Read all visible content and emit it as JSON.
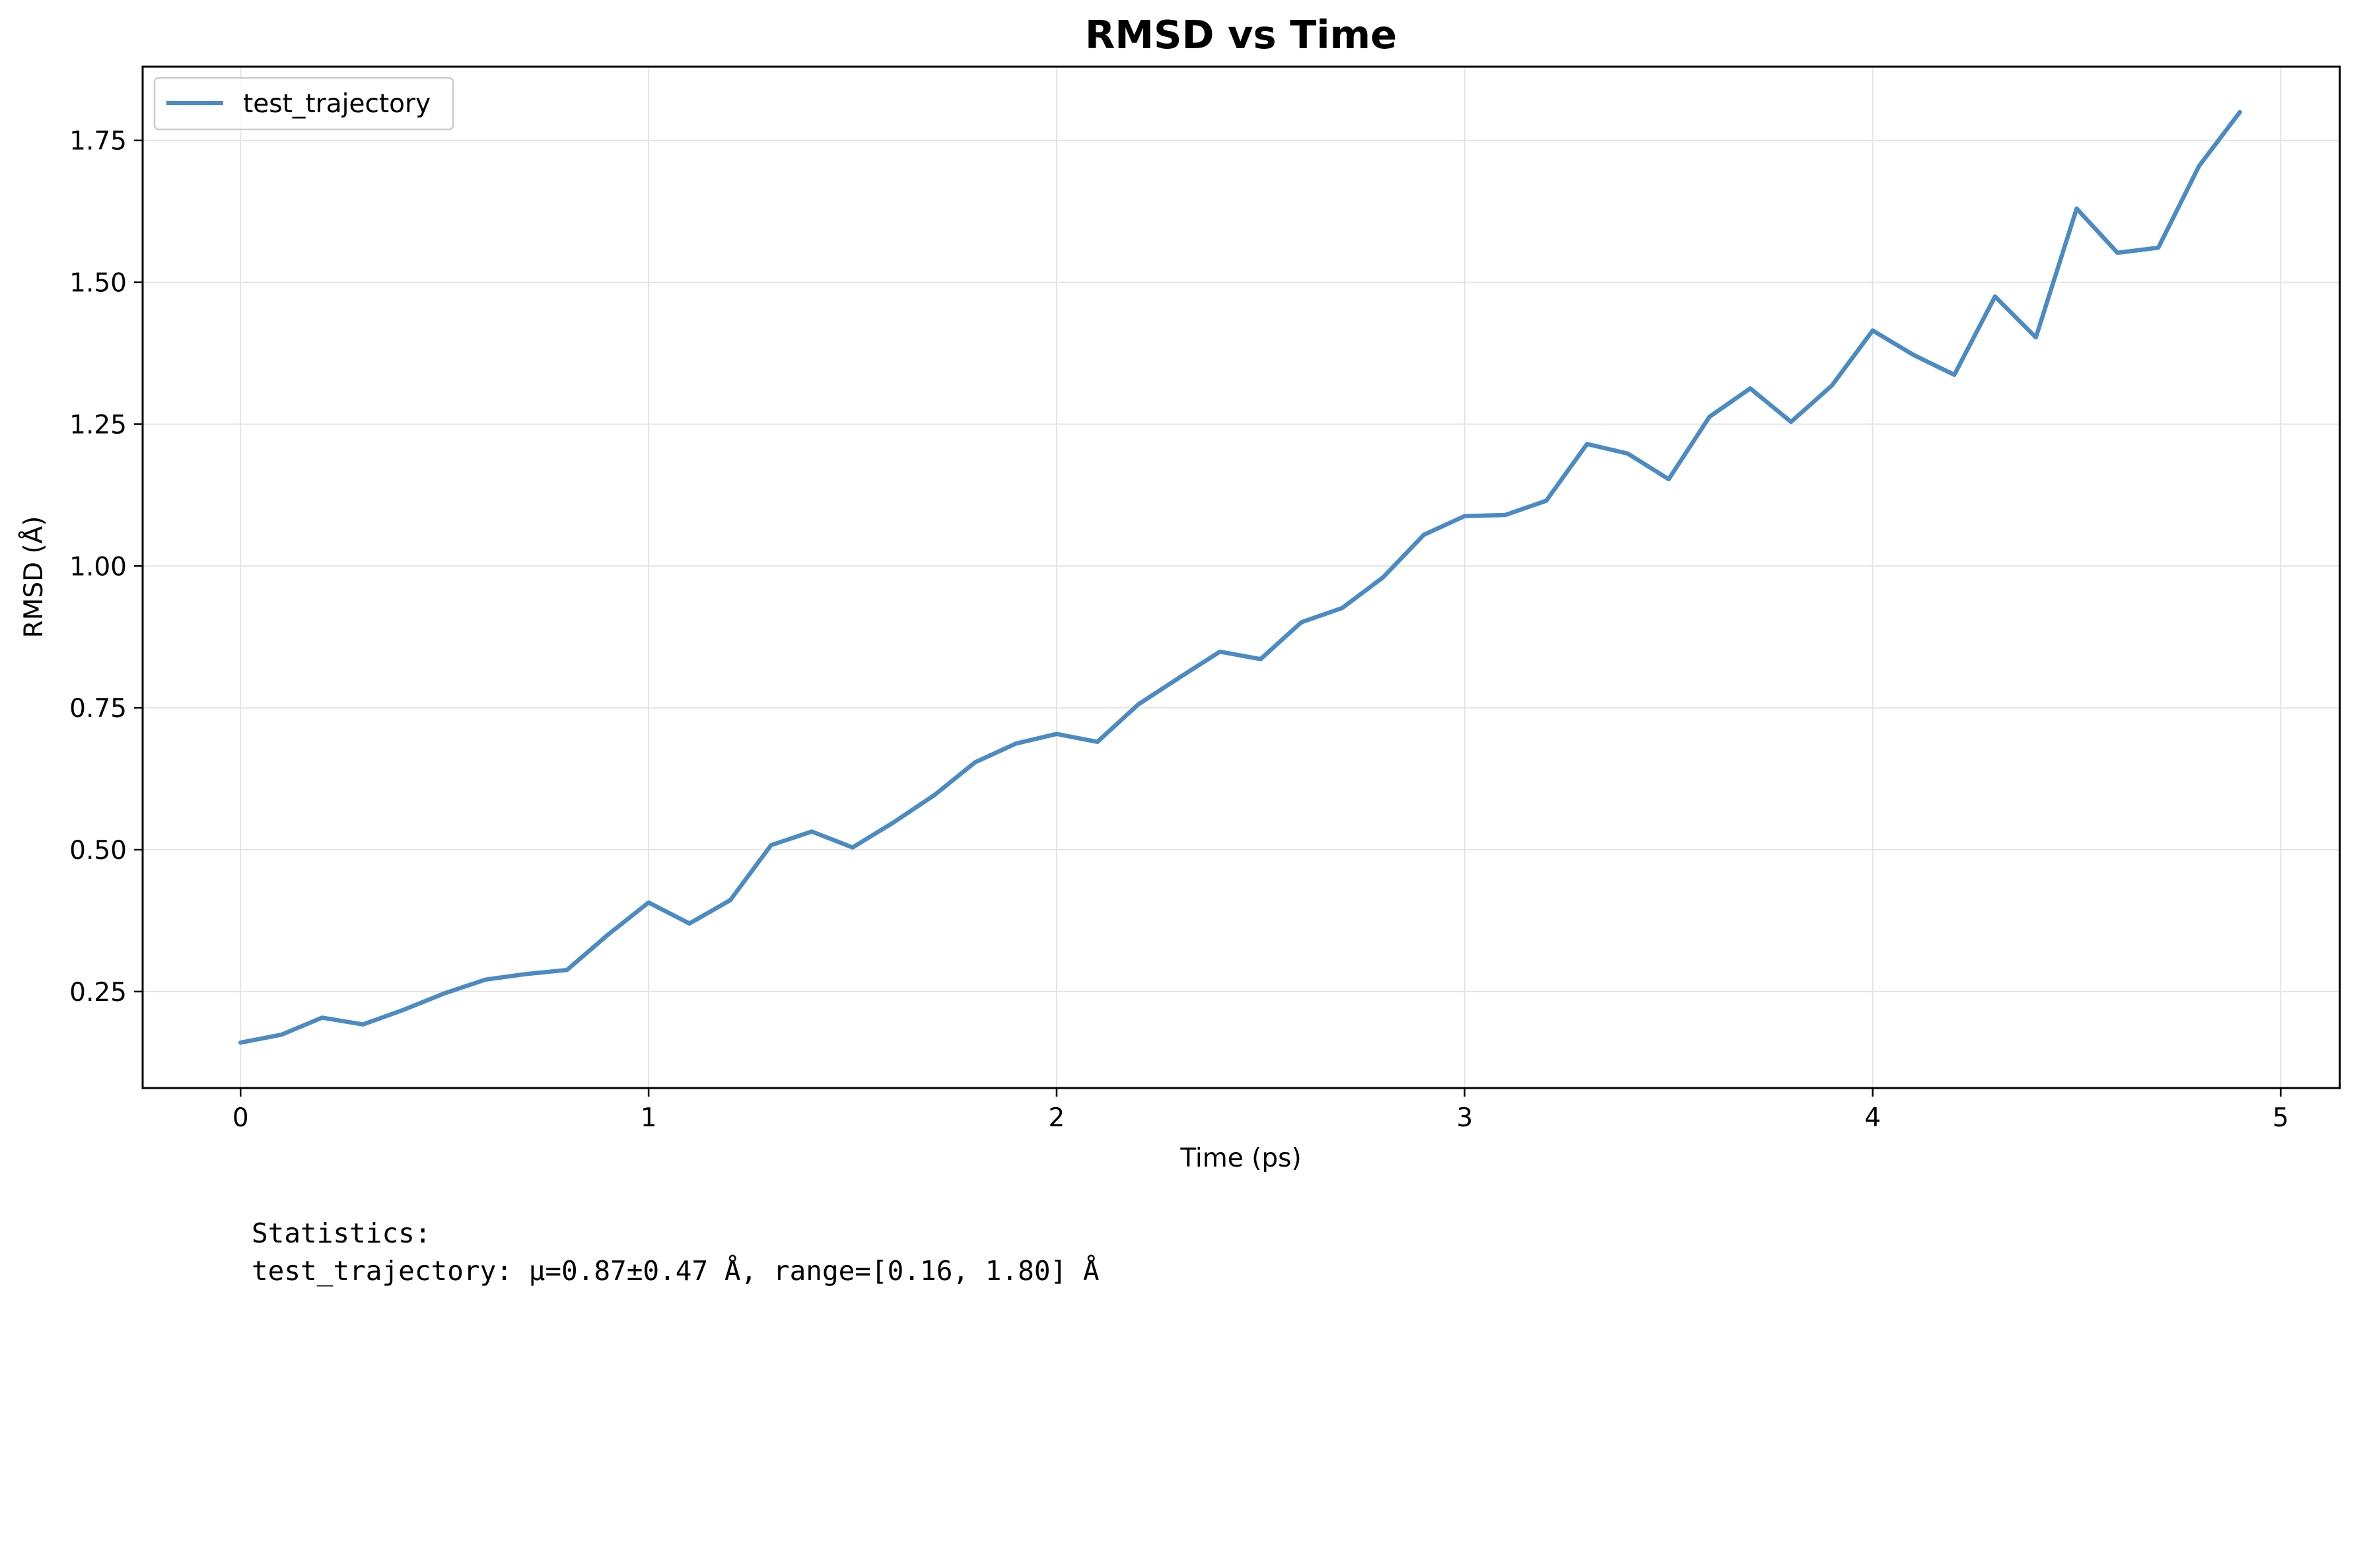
{
  "chart_data": {
    "type": "line",
    "title": "RMSD vs Time",
    "xlabel": "Time (ps)",
    "ylabel": "RMSD (Å)",
    "xlim": [
      -0.24,
      5.145
    ],
    "ylim": [
      0.08,
      1.88
    ],
    "xticks": [
      0,
      1,
      2,
      3,
      4,
      5
    ],
    "xtick_labels": [
      "0",
      "1",
      "2",
      "3",
      "4",
      "5"
    ],
    "yticks": [
      0.25,
      0.5,
      0.75,
      1.0,
      1.25,
      1.5,
      1.75
    ],
    "ytick_labels": [
      "0.25",
      "0.50",
      "0.75",
      "1.00",
      "1.25",
      "1.50",
      "1.75"
    ],
    "grid": true,
    "legend_position": "top-left",
    "x": [
      0,
      0.1,
      0.2,
      0.3,
      0.4,
      0.5,
      0.6,
      0.7,
      0.8,
      0.9,
      1.0,
      1.1,
      1.2,
      1.3,
      1.4,
      1.5,
      1.6,
      1.7,
      1.8,
      1.9,
      2.0,
      2.1,
      2.2,
      2.3,
      2.4,
      2.5,
      2.6,
      2.7,
      2.8,
      2.9,
      3.0,
      3.1,
      3.2,
      3.3,
      3.4,
      3.5,
      3.6,
      3.7,
      3.8,
      3.9,
      4.0,
      4.1,
      4.2,
      4.3,
      4.4,
      4.5,
      4.6,
      4.7,
      4.8,
      4.9
    ],
    "series": [
      {
        "name": "test_trajectory",
        "color": "#4a8bc4",
        "values": [
          0.16,
          0.174,
          0.204,
          0.192,
          0.218,
          0.247,
          0.271,
          0.281,
          0.288,
          0.35,
          0.407,
          0.37,
          0.411,
          0.508,
          0.532,
          0.504,
          0.548,
          0.596,
          0.654,
          0.687,
          0.704,
          0.69,
          0.756,
          0.803,
          0.849,
          0.836,
          0.901,
          0.926,
          0.98,
          1.055,
          1.088,
          1.09,
          1.115,
          1.215,
          1.198,
          1.153,
          1.263,
          1.313,
          1.254,
          1.318,
          1.415,
          1.372,
          1.337,
          1.475,
          1.403,
          1.63,
          1.552,
          1.561,
          1.705,
          1.8
        ]
      }
    ]
  },
  "stats": {
    "heading": "Statistics:",
    "line": "test_trajectory: μ=0.87±0.47 Å, range=[0.16, 1.80] Å"
  }
}
